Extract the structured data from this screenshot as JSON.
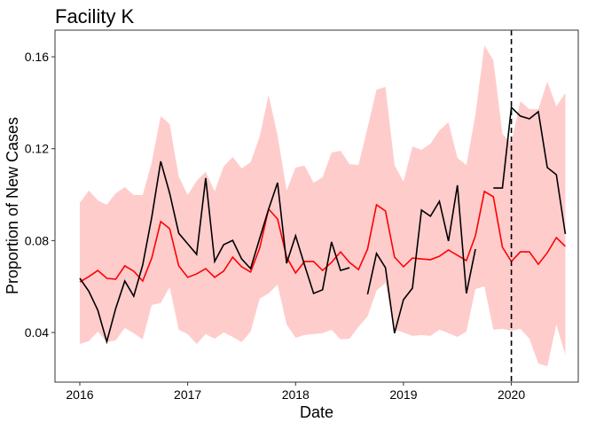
{
  "chart_data": {
    "type": "line",
    "title": "Facility K",
    "x_label": "Date",
    "y_label": "Proportion of New Cases",
    "x": [
      2016,
      2016.083,
      2016.167,
      2016.25,
      2016.333,
      2016.417,
      2016.5,
      2016.583,
      2016.667,
      2016.75,
      2016.833,
      2016.917,
      2017,
      2017.083,
      2017.167,
      2017.25,
      2017.333,
      2017.417,
      2017.5,
      2017.583,
      2017.667,
      2017.75,
      2017.833,
      2017.917,
      2018,
      2018.083,
      2018.167,
      2018.25,
      2018.333,
      2018.417,
      2018.5,
      2018.583,
      2018.667,
      2018.75,
      2018.833,
      2018.917,
      2019,
      2019.083,
      2019.167,
      2019.25,
      2019.333,
      2019.417,
      2019.5,
      2019.583,
      2019.667,
      2019.75,
      2019.833,
      2019.917,
      2020,
      2020.083,
      2020.167,
      2020.25,
      2020.333,
      2020.417,
      2020.5
    ],
    "band": {
      "color": "#ffcccc",
      "upper": [
        0.0964,
        0.1018,
        0.0975,
        0.0956,
        0.1006,
        0.1033,
        0.0998,
        0.0998,
        0.1141,
        0.1342,
        0.1307,
        0.1079,
        0.0998,
        0.106,
        0.1099,
        0.1014,
        0.1122,
        0.1164,
        0.1114,
        0.1141,
        0.1253,
        0.1434,
        0.1257,
        0.1018,
        0.1118,
        0.1126,
        0.1052,
        0.1075,
        0.1183,
        0.1191,
        0.1133,
        0.1129,
        0.1291,
        0.1457,
        0.1469,
        0.1129,
        0.1056,
        0.121,
        0.1195,
        0.1222,
        0.128,
        0.1315,
        0.116,
        0.1129,
        0.1349,
        0.165,
        0.1585,
        0.1264,
        0.1226,
        0.1407,
        0.1372,
        0.1372,
        0.1492,
        0.1384,
        0.1442
      ],
      "lower": [
        0.035,
        0.0362,
        0.0404,
        0.0358,
        0.0366,
        0.042,
        0.0397,
        0.037,
        0.052,
        0.0528,
        0.0598,
        0.0412,
        0.0393,
        0.035,
        0.0393,
        0.0373,
        0.04,
        0.0381,
        0.0358,
        0.0404,
        0.0547,
        0.057,
        0.0609,
        0.0435,
        0.0377,
        0.0389,
        0.0393,
        0.0397,
        0.0412,
        0.037,
        0.0373,
        0.0424,
        0.047,
        0.0582,
        0.0616,
        0.0412,
        0.04,
        0.0385,
        0.0389,
        0.0385,
        0.0412,
        0.0397,
        0.0381,
        0.0404,
        0.0589,
        0.0601,
        0.0412,
        0.0416,
        0.0408,
        0.0416,
        0.0373,
        0.0265,
        0.0253,
        0.0435,
        0.0304
      ]
    },
    "series": [
      {
        "color": "#ff0000",
        "values": [
          0.062,
          0.0643,
          0.067,
          0.0636,
          0.0632,
          0.069,
          0.0667,
          0.0624,
          0.0724,
          0.0883,
          0.0852,
          0.069,
          0.064,
          0.0655,
          0.0678,
          0.064,
          0.0667,
          0.0728,
          0.0686,
          0.0663,
          0.0767,
          0.0937,
          0.0894,
          0.0728,
          0.0659,
          0.0709,
          0.0709,
          0.067,
          0.0705,
          0.0751,
          0.0705,
          0.0674,
          0.0763,
          0.0956,
          0.0929,
          0.0728,
          0.0686,
          0.0724,
          0.072,
          0.0717,
          0.0732,
          0.0759,
          0.0736,
          0.0713,
          0.0821,
          0.1014,
          0.0991,
          0.0771,
          0.0709,
          0.0751,
          0.0751,
          0.0697,
          0.0747,
          0.0813,
          0.0775
        ]
      },
      {
        "color": "#000000",
        "values": [
          0.0636,
          0.058,
          0.0497,
          0.036,
          0.0505,
          0.0624,
          0.0558,
          0.0694,
          0.0902,
          0.1145,
          0.1006,
          0.0832,
          0.0786,
          0.074,
          0.1072,
          0.0709,
          0.0782,
          0.0801,
          0.072,
          0.0678,
          0.0809,
          0.0937,
          0.1052,
          0.0701,
          0.0821,
          0.0694,
          0.057,
          0.0586,
          0.0794,
          0.067,
          0.0682,
          null,
          0.0566,
          0.0744,
          0.0682,
          0.0397,
          0.0543,
          0.0593,
          0.0933,
          0.0906,
          0.0971,
          0.0798,
          0.1041,
          0.057,
          0.0763,
          null,
          0.1029,
          0.1029,
          0.138,
          0.1342,
          0.133,
          0.1361,
          0.1118,
          0.1087,
          0.0829
        ]
      }
    ],
    "vline": 2020,
    "xlim": [
      2015.77,
      2020.62
    ],
    "xticks": [
      2016,
      2017,
      2018,
      2019,
      2020
    ],
    "ylim": [
      0.0184,
      0.1716
    ],
    "yticks": [
      0.04,
      0.08,
      0.12,
      0.16
    ],
    "grid": false
  }
}
